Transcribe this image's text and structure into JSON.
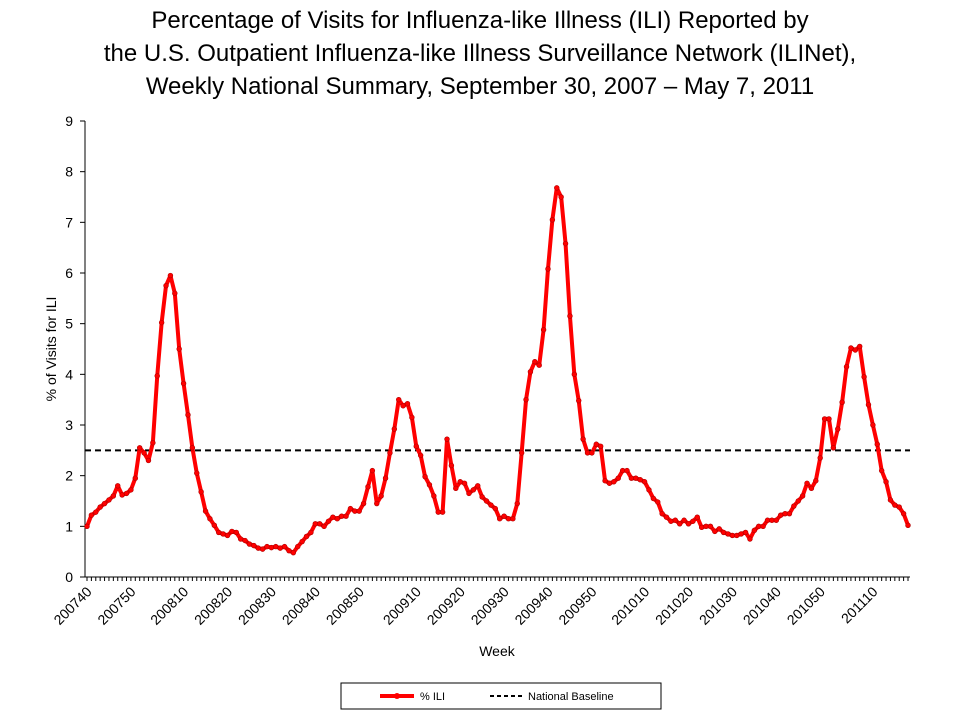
{
  "chart_data": {
    "type": "line",
    "title": [
      "Percentage of Visits for Influenza-like Illness (ILI) Reported by",
      "the U.S. Outpatient Influenza-like Illness Surveillance Network (ILINet),",
      "Weekly National Summary, September 30, 2007 – May 7, 2011"
    ],
    "y_label": "% of Visits for ILI",
    "x_label": "Week",
    "ylim": [
      0,
      9
    ],
    "yticks": [
      0,
      1,
      2,
      3,
      4,
      5,
      6,
      7,
      8,
      9
    ],
    "grid": false,
    "categories": [
      "200740",
      null,
      null,
      null,
      null,
      null,
      null,
      null,
      null,
      null,
      "200750",
      null,
      null,
      null,
      null,
      null,
      null,
      null,
      null,
      null,
      null,
      null,
      "200810",
      null,
      null,
      null,
      null,
      null,
      null,
      null,
      null,
      null,
      "200820",
      null,
      null,
      null,
      null,
      null,
      null,
      null,
      null,
      null,
      "200830",
      null,
      null,
      null,
      null,
      null,
      null,
      null,
      null,
      null,
      "200840",
      null,
      null,
      null,
      null,
      null,
      null,
      null,
      null,
      null,
      "200850",
      null,
      null,
      null,
      null,
      null,
      null,
      null,
      null,
      null,
      null,
      null,
      null,
      "200910",
      null,
      null,
      null,
      null,
      null,
      null,
      null,
      null,
      null,
      "200920",
      null,
      null,
      null,
      null,
      null,
      null,
      null,
      null,
      null,
      "200930",
      null,
      null,
      null,
      null,
      null,
      null,
      null,
      null,
      null,
      "200940",
      null,
      null,
      null,
      null,
      null,
      null,
      null,
      null,
      null,
      "200950",
      null,
      null,
      null,
      null,
      null,
      null,
      null,
      null,
      null,
      null,
      null,
      "201010",
      null,
      null,
      null,
      null,
      null,
      null,
      null,
      null,
      null,
      "201020",
      null,
      null,
      null,
      null,
      null,
      null,
      null,
      null,
      null,
      "201030",
      null,
      null,
      null,
      null,
      null,
      null,
      null,
      null,
      null,
      "201040",
      null,
      null,
      null,
      null,
      null,
      null,
      null,
      null,
      null,
      "201050",
      null,
      null,
      null,
      null,
      null,
      null,
      null,
      null,
      null,
      null,
      null,
      "201110",
      null,
      null,
      null,
      null,
      null,
      null,
      null,
      null
    ],
    "series": [
      {
        "name": "% ILI",
        "color": "#ff0000",
        "values": [
          1.0,
          1.22,
          1.28,
          1.38,
          1.45,
          1.52,
          1.6,
          1.8,
          1.62,
          1.65,
          1.72,
          1.95,
          2.55,
          2.45,
          2.3,
          2.65,
          3.97,
          5.02,
          5.75,
          5.95,
          5.6,
          4.5,
          3.82,
          3.2,
          2.55,
          2.05,
          1.68,
          1.3,
          1.15,
          1.02,
          0.88,
          0.85,
          0.82,
          0.9,
          0.88,
          0.75,
          0.72,
          0.65,
          0.62,
          0.57,
          0.55,
          0.6,
          0.58,
          0.6,
          0.57,
          0.6,
          0.52,
          0.48,
          0.6,
          0.7,
          0.8,
          0.88,
          1.05,
          1.05,
          1.0,
          1.1,
          1.18,
          1.15,
          1.2,
          1.2,
          1.35,
          1.3,
          1.3,
          1.45,
          1.78,
          2.1,
          1.45,
          1.6,
          1.95,
          2.45,
          2.92,
          3.5,
          3.38,
          3.42,
          3.15,
          2.58,
          2.4,
          1.98,
          1.82,
          1.6,
          1.28,
          1.28,
          2.72,
          2.2,
          1.75,
          1.88,
          1.85,
          1.65,
          1.72,
          1.8,
          1.58,
          1.5,
          1.42,
          1.35,
          1.15,
          1.2,
          1.15,
          1.15,
          1.45,
          2.45,
          3.5,
          4.05,
          4.25,
          4.18,
          4.88,
          6.08,
          7.05,
          7.68,
          7.5,
          6.58,
          5.15,
          4.0,
          3.48,
          2.72,
          2.45,
          2.45,
          2.62,
          2.58,
          1.9,
          1.85,
          1.88,
          1.95,
          2.1,
          2.1,
          1.95,
          1.95,
          1.92,
          1.88,
          1.72,
          1.55,
          1.48,
          1.25,
          1.18,
          1.1,
          1.12,
          1.05,
          1.12,
          1.05,
          1.1,
          1.18,
          0.98,
          1.0,
          1.0,
          0.9,
          0.95,
          0.88,
          0.85,
          0.82,
          0.82,
          0.85,
          0.88,
          0.75,
          0.92,
          1.0,
          1.0,
          1.12,
          1.12,
          1.12,
          1.22,
          1.25,
          1.25,
          1.4,
          1.5,
          1.6,
          1.85,
          1.75,
          1.9,
          2.35,
          3.12,
          3.12,
          2.55,
          2.92,
          3.45,
          4.15,
          4.52,
          4.48,
          4.55,
          3.95,
          3.4,
          3.0,
          2.62,
          2.1,
          1.88,
          1.52,
          1.42,
          1.38,
          1.25,
          1.02
        ]
      }
    ],
    "reference_lines": [
      {
        "name": "National Baseline",
        "value": 2.5,
        "color": "#000000",
        "style": "dashed"
      }
    ]
  }
}
